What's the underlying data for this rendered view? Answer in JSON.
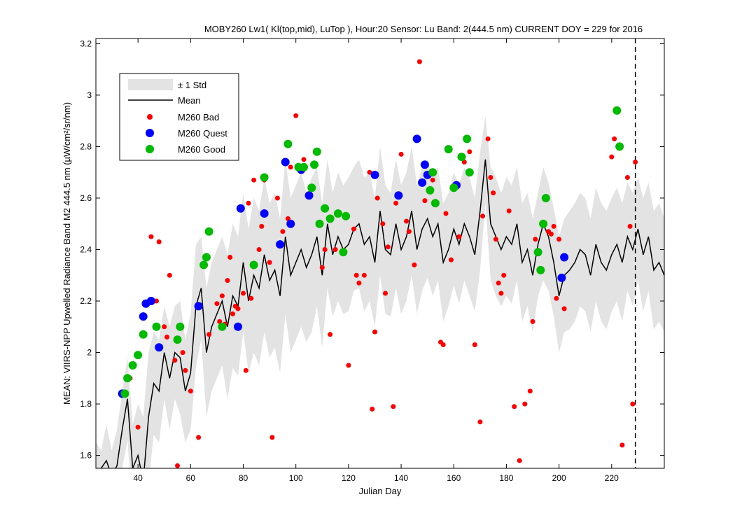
{
  "chart_data": {
    "type": "scatter",
    "title": "MOBY260   Lw1( Kl(top,mid), LuTop ),   Hour:20 Sensor: Lu Band: 2(444.5 nm)   CURRENT DOY = 229 for 2016",
    "xlabel": "Julian Day",
    "ylabel": "MEAN: VIIRS-NPP Upwelled Radiance Band M2 444.5 nm (µW/cm²/sr/nm)",
    "xlim": [
      24,
      240
    ],
    "ylim": [
      1.55,
      3.22
    ],
    "xticks": [
      40,
      60,
      80,
      100,
      120,
      140,
      160,
      180,
      200,
      220
    ],
    "yticks": [
      1.6,
      1.8,
      2.0,
      2.2,
      2.4,
      2.6,
      2.8,
      3.0,
      3.2
    ],
    "ytick_labels": [
      "1.6",
      "1.8",
      "2",
      "2.2",
      "2.4",
      "2.6",
      "2.8",
      "3",
      "3.2"
    ],
    "current_doy": 229,
    "legend": {
      "position": "top-left",
      "entries": [
        "± 1 Std",
        "Mean",
        "M260 Bad",
        "M260 Quest",
        "M260 Good"
      ]
    },
    "colors": {
      "band": "#e3e3e3",
      "mean": "#000000",
      "bad": "#ff0000",
      "quest": "#0000ff",
      "good": "#00bb00"
    },
    "mean": {
      "x": [
        24,
        26,
        28,
        30,
        32,
        34,
        36,
        38,
        40,
        42,
        44,
        46,
        48,
        50,
        52,
        54,
        56,
        58,
        60,
        62,
        64,
        66,
        68,
        70,
        72,
        74,
        76,
        78,
        80,
        82,
        84,
        86,
        88,
        90,
        92,
        94,
        96,
        98,
        100,
        102,
        104,
        106,
        108,
        110,
        112,
        114,
        116,
        118,
        120,
        122,
        124,
        126,
        128,
        130,
        132,
        134,
        136,
        138,
        140,
        142,
        144,
        146,
        148,
        150,
        152,
        154,
        156,
        158,
        160,
        162,
        164,
        166,
        168,
        170,
        172,
        174,
        176,
        178,
        180,
        182,
        184,
        186,
        188,
        190,
        192,
        194,
        196,
        198,
        200,
        202,
        204,
        206,
        208,
        210,
        212,
        214,
        216,
        218,
        220,
        222,
        224,
        226,
        228,
        230,
        232,
        234,
        236,
        238,
        240
      ],
      "y": [
        1.5,
        1.55,
        1.58,
        1.52,
        1.56,
        1.7,
        1.82,
        1.55,
        1.6,
        1.5,
        1.75,
        1.88,
        1.85,
        2.0,
        1.9,
        2.0,
        1.98,
        1.85,
        1.92,
        2.18,
        2.25,
        2.0,
        2.1,
        2.15,
        2.2,
        2.1,
        2.22,
        2.18,
        2.35,
        2.2,
        2.3,
        2.25,
        2.38,
        2.28,
        2.32,
        2.22,
        2.45,
        2.3,
        2.35,
        2.4,
        2.33,
        2.38,
        2.45,
        2.3,
        2.5,
        2.38,
        2.45,
        2.4,
        2.42,
        2.48,
        2.5,
        2.42,
        2.45,
        2.35,
        2.55,
        2.4,
        2.38,
        2.5,
        2.4,
        2.45,
        2.55,
        2.4,
        2.48,
        2.52,
        2.45,
        2.5,
        2.35,
        2.4,
        2.48,
        2.42,
        2.5,
        2.45,
        2.38,
        2.55,
        2.75,
        2.5,
        2.45,
        2.4,
        2.45,
        2.42,
        2.5,
        2.35,
        2.4,
        2.3,
        2.42,
        2.5,
        2.45,
        2.35,
        2.22,
        2.3,
        2.32,
        2.35,
        2.4,
        2.38,
        2.3,
        2.42,
        2.35,
        2.32,
        2.38,
        2.42,
        2.35,
        2.45,
        2.4,
        2.48,
        2.38,
        2.45,
        2.32,
        2.35,
        2.3
      ]
    },
    "std_upper": [
      1.65,
      1.62,
      1.72,
      1.62,
      1.7,
      1.85,
      1.98,
      1.72,
      1.8,
      1.75,
      2.0,
      2.08,
      2.05,
      2.18,
      2.1,
      2.18,
      2.2,
      2.05,
      2.15,
      2.42,
      2.45,
      2.25,
      2.35,
      2.4,
      2.45,
      2.38,
      2.5,
      2.45,
      2.62,
      2.48,
      2.6,
      2.55,
      2.68,
      2.58,
      2.62,
      2.52,
      2.75,
      2.6,
      2.65,
      2.7,
      2.62,
      2.68,
      2.72,
      2.58,
      2.75,
      2.62,
      2.7,
      2.65,
      2.68,
      2.72,
      2.75,
      2.68,
      2.7,
      2.6,
      2.8,
      2.65,
      2.62,
      2.75,
      2.65,
      2.7,
      2.8,
      2.65,
      2.72,
      2.75,
      2.68,
      2.72,
      2.58,
      2.62,
      2.7,
      2.65,
      2.72,
      2.68,
      2.6,
      2.78,
      2.92,
      2.72,
      2.68,
      2.62,
      2.68,
      2.65,
      2.72,
      2.58,
      2.62,
      2.52,
      2.62,
      2.72,
      2.66,
      2.56,
      2.45,
      2.52,
      2.55,
      2.58,
      2.62,
      2.6,
      2.52,
      2.64,
      2.58,
      2.55,
      2.6,
      2.64,
      2.58,
      2.66,
      2.62,
      2.68,
      2.6,
      2.66,
      2.55,
      2.58,
      2.52
    ],
    "std_lower": [
      1.35,
      1.48,
      1.44,
      1.42,
      1.42,
      1.55,
      1.66,
      1.38,
      1.4,
      1.3,
      1.5,
      1.68,
      1.65,
      1.82,
      1.7,
      1.82,
      1.76,
      1.65,
      1.7,
      1.94,
      2.05,
      1.75,
      1.85,
      1.9,
      1.95,
      1.82,
      1.94,
      1.91,
      2.08,
      1.92,
      2.0,
      1.95,
      2.08,
      1.98,
      2.02,
      1.92,
      2.15,
      2.0,
      2.05,
      2.1,
      2.04,
      2.08,
      2.18,
      2.02,
      2.25,
      2.14,
      2.2,
      2.15,
      2.16,
      2.24,
      2.25,
      2.16,
      2.2,
      2.1,
      2.3,
      2.15,
      2.14,
      2.25,
      2.15,
      2.2,
      2.3,
      2.15,
      2.24,
      2.29,
      2.22,
      2.28,
      2.12,
      2.18,
      2.26,
      2.19,
      2.28,
      2.22,
      2.16,
      2.32,
      2.58,
      2.28,
      2.22,
      2.18,
      2.22,
      2.19,
      2.28,
      2.12,
      2.18,
      2.08,
      2.22,
      2.28,
      2.24,
      2.14,
      2.0,
      2.08,
      2.09,
      2.12,
      2.18,
      2.16,
      2.08,
      2.2,
      2.12,
      2.09,
      2.16,
      2.2,
      2.12,
      2.24,
      2.18,
      2.28,
      2.16,
      2.24,
      2.09,
      2.12,
      2.08
    ],
    "series": [
      {
        "name": "M260 Bad",
        "x": [
          37,
          40,
          45,
          47,
          48,
          50,
          51,
          52,
          54,
          55,
          57,
          58,
          60,
          63,
          67,
          70,
          71,
          72,
          73,
          74,
          75,
          76,
          77,
          78,
          80,
          81,
          82,
          83,
          84,
          86,
          87,
          88,
          90,
          91,
          93,
          95,
          97,
          98,
          100,
          103,
          110,
          111,
          113,
          115,
          120,
          122,
          123,
          124,
          126,
          128,
          129,
          130,
          131,
          133,
          134,
          135,
          137,
          138,
          140,
          142,
          143,
          145,
          147,
          149,
          152,
          155,
          156,
          157,
          159,
          162,
          164,
          166,
          168,
          170,
          171,
          173,
          174,
          175,
          176,
          177,
          178,
          179,
          181,
          183,
          185,
          187,
          189,
          190,
          191,
          196,
          197,
          198,
          199,
          200,
          202,
          220,
          221,
          224,
          226,
          227,
          228,
          229
        ],
        "y": [
          1.9,
          1.71,
          2.45,
          2.2,
          2.43,
          2.1,
          2.06,
          2.3,
          1.97,
          1.56,
          2.0,
          1.93,
          1.85,
          1.67,
          2.07,
          2.19,
          2.12,
          2.22,
          2.11,
          2.28,
          2.37,
          2.15,
          2.18,
          2.17,
          2.23,
          1.93,
          2.58,
          2.21,
          2.67,
          2.4,
          2.49,
          2.67,
          2.35,
          1.67,
          2.6,
          2.47,
          2.52,
          2.72,
          2.92,
          2.75,
          2.33,
          2.4,
          2.07,
          2.4,
          1.95,
          2.48,
          2.3,
          2.27,
          2.3,
          2.7,
          1.78,
          2.08,
          2.6,
          2.5,
          2.23,
          2.41,
          1.79,
          2.58,
          2.77,
          2.51,
          2.47,
          2.34,
          3.13,
          2.59,
          2.67,
          2.04,
          2.03,
          2.54,
          2.36,
          2.45,
          2.74,
          2.78,
          2.03,
          1.73,
          2.53,
          2.83,
          2.68,
          2.62,
          2.44,
          2.27,
          2.23,
          2.3,
          2.55,
          1.79,
          1.58,
          1.8,
          1.85,
          2.12,
          2.44,
          2.47,
          2.46,
          2.49,
          2.21,
          2.44,
          2.17,
          2.76,
          2.83,
          1.64,
          2.68,
          2.49,
          1.8,
          2.74
        ]
      },
      {
        "name": "M260 Quest",
        "x": [
          34,
          42,
          43,
          45,
          48,
          63,
          78,
          79,
          88,
          94,
          96,
          98,
          102,
          105,
          130,
          139,
          146,
          148,
          149,
          150,
          161,
          201,
          202
        ],
        "y": [
          1.84,
          2.14,
          2.19,
          2.2,
          2.02,
          2.18,
          2.1,
          2.56,
          2.54,
          2.42,
          2.74,
          2.5,
          2.71,
          2.61,
          2.69,
          2.61,
          2.83,
          2.66,
          2.73,
          2.69,
          2.65,
          2.29,
          2.37
        ]
      },
      {
        "name": "M260 Good",
        "x": [
          35,
          36,
          38,
          40,
          42,
          47,
          55,
          56,
          65,
          66,
          67,
          72,
          84,
          88,
          97,
          101,
          103,
          106,
          107,
          108,
          109,
          111,
          113,
          116,
          118,
          119,
          151,
          152,
          153,
          158,
          160,
          163,
          165,
          166,
          192,
          193,
          194,
          195,
          222,
          223
        ],
        "y": [
          1.84,
          1.9,
          1.95,
          1.99,
          2.07,
          2.1,
          2.05,
          2.1,
          2.34,
          2.37,
          2.47,
          2.1,
          2.34,
          2.68,
          2.81,
          2.72,
          2.72,
          2.64,
          2.73,
          2.78,
          2.5,
          2.56,
          2.52,
          2.54,
          2.39,
          2.53,
          2.63,
          2.7,
          2.58,
          2.79,
          2.64,
          2.76,
          2.83,
          2.7,
          2.39,
          2.32,
          2.5,
          2.6,
          2.94,
          2.8
        ]
      }
    ]
  }
}
